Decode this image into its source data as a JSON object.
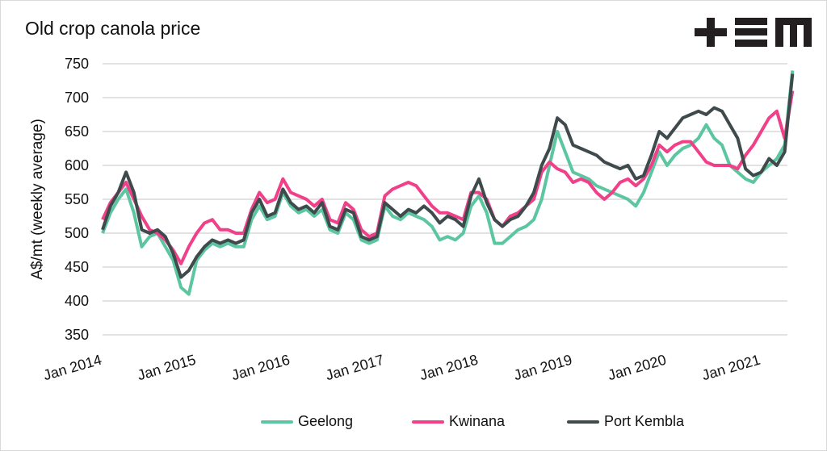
{
  "chart_data": {
    "type": "line",
    "title": "Old crop canola price",
    "ylabel": "A$/mt (weekly average)",
    "xlabel": "",
    "ylim": [
      350,
      750
    ],
    "yticks": [
      "350",
      "400",
      "450",
      "500",
      "550",
      "600",
      "650",
      "700",
      "750"
    ],
    "xticks": [
      "Jan 2014",
      "Jan 2015",
      "Jan 2016",
      "Jan 2017",
      "Jan 2018",
      "Jan 2019",
      "Jan 2020",
      "Jan 2021"
    ],
    "x_start": "Jan 2014",
    "x_interval": "monthly",
    "grid": true,
    "legend_position": "bottom",
    "series": [
      {
        "name": "Geelong",
        "color": "#5cc6a0",
        "values": [
          500,
          530,
          550,
          565,
          530,
          480,
          495,
          500,
          480,
          460,
          420,
          410,
          460,
          475,
          485,
          480,
          485,
          480,
          480,
          520,
          540,
          520,
          525,
          560,
          540,
          530,
          535,
          525,
          535,
          505,
          500,
          530,
          520,
          490,
          485,
          490,
          540,
          525,
          520,
          530,
          525,
          520,
          510,
          490,
          495,
          490,
          500,
          540,
          555,
          530,
          485,
          485,
          495,
          505,
          510,
          520,
          550,
          600,
          650,
          620,
          590,
          585,
          580,
          570,
          565,
          560,
          555,
          550,
          540,
          560,
          590,
          620,
          600,
          615,
          625,
          630,
          640,
          660,
          640,
          630,
          600,
          590,
          580,
          575,
          590,
          600,
          610,
          630,
          740
        ]
      },
      {
        "name": "Kwinana",
        "color": "#f0408a",
        "values": [
          520,
          545,
          560,
          575,
          550,
          525,
          505,
          500,
          490,
          475,
          455,
          480,
          500,
          515,
          520,
          505,
          505,
          500,
          500,
          535,
          560,
          545,
          550,
          580,
          560,
          555,
          550,
          540,
          550,
          520,
          515,
          545,
          535,
          505,
          495,
          500,
          555,
          565,
          570,
          575,
          570,
          555,
          540,
          530,
          530,
          525,
          520,
          560,
          560,
          550,
          520,
          510,
          525,
          530,
          540,
          550,
          590,
          605,
          595,
          590,
          575,
          580,
          575,
          560,
          550,
          560,
          575,
          580,
          570,
          580,
          600,
          630,
          620,
          630,
          635,
          635,
          620,
          605,
          600,
          600,
          600,
          595,
          615,
          630,
          650,
          670,
          680,
          640,
          710
        ]
      },
      {
        "name": "Port Kembla",
        "color": "#3f4a4c",
        "values": [
          505,
          540,
          560,
          590,
          560,
          505,
          500,
          505,
          495,
          470,
          435,
          445,
          465,
          480,
          490,
          485,
          490,
          485,
          490,
          530,
          550,
          525,
          530,
          565,
          545,
          535,
          540,
          530,
          545,
          510,
          505,
          535,
          530,
          495,
          490,
          495,
          545,
          535,
          525,
          535,
          530,
          540,
          530,
          515,
          525,
          520,
          510,
          555,
          580,
          545,
          520,
          510,
          520,
          525,
          540,
          560,
          600,
          625,
          670,
          660,
          630,
          625,
          620,
          615,
          605,
          600,
          595,
          600,
          580,
          585,
          615,
          650,
          640,
          655,
          670,
          675,
          680,
          675,
          685,
          680,
          660,
          640,
          595,
          585,
          590,
          610,
          600,
          620,
          735
        ]
      }
    ]
  },
  "logo_text": "+EM"
}
